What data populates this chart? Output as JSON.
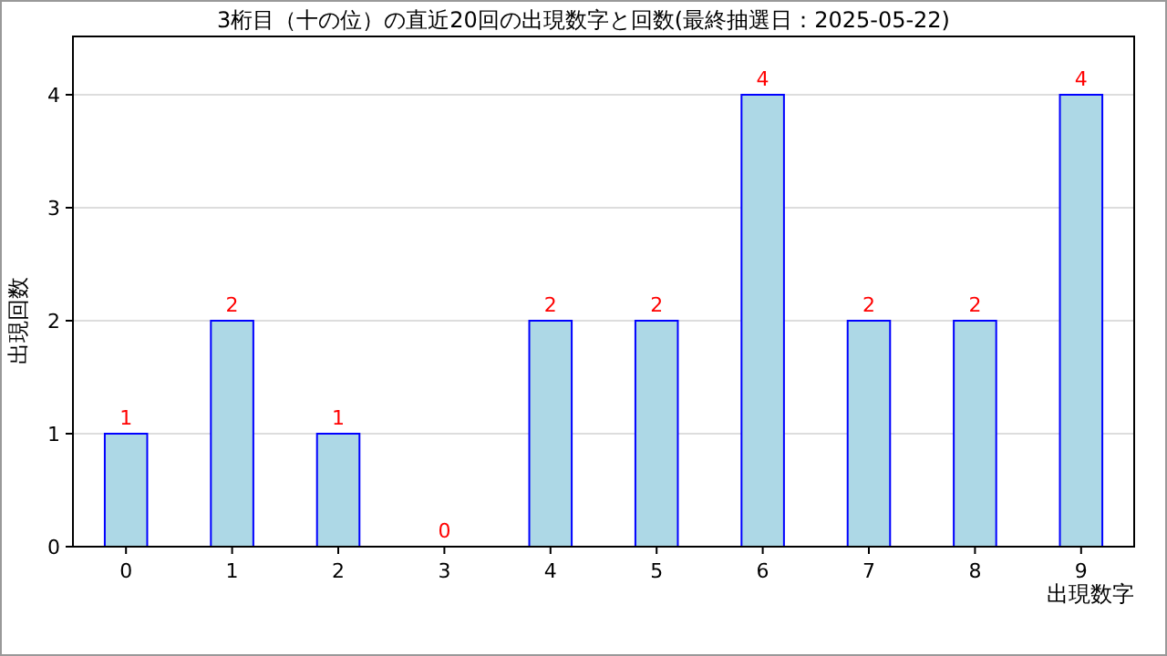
{
  "chart_data": {
    "type": "bar",
    "title": "3桁目（十の位）の直近20回の出現数字と回数(最終抽選日：2025-05-22)",
    "xlabel": "出現数字",
    "ylabel": "出現回数",
    "categories": [
      "0",
      "1",
      "2",
      "3",
      "4",
      "5",
      "6",
      "7",
      "8",
      "9"
    ],
    "values": [
      1,
      2,
      1,
      0,
      2,
      2,
      4,
      2,
      2,
      4
    ],
    "color": "#add8e6",
    "ylim": [
      0,
      4
    ],
    "yticks": [
      0,
      1,
      2,
      3,
      4
    ],
    "grid": "y",
    "data_labels": true
  }
}
